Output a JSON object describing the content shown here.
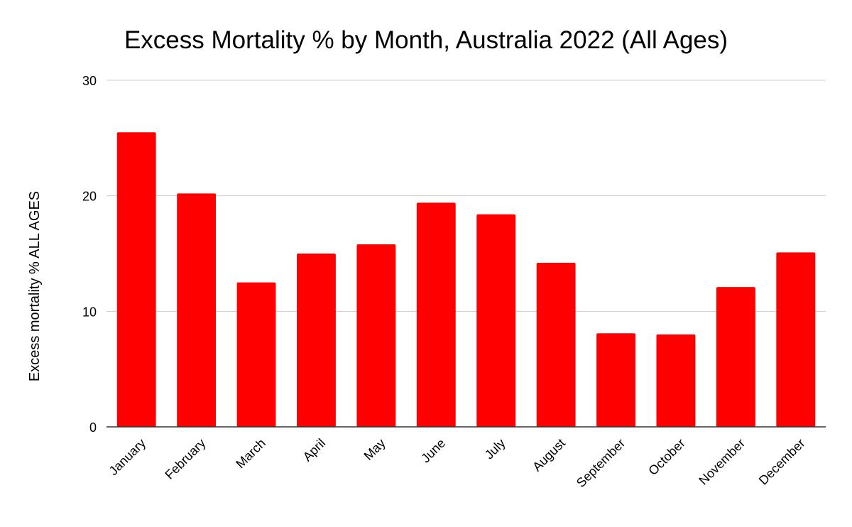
{
  "chart_data": {
    "type": "bar",
    "title": "Excess Mortality % by Month, Australia 2022 (All Ages)",
    "xlabel": "",
    "ylabel": "Excess mortality % ALL AGES",
    "categories": [
      "January",
      "February",
      "March",
      "April",
      "May",
      "June",
      "July",
      "August",
      "September",
      "October",
      "November",
      "December"
    ],
    "values": [
      25.5,
      20.2,
      12.5,
      15.0,
      15.8,
      19.4,
      18.4,
      14.2,
      8.1,
      8.0,
      12.1,
      15.1
    ],
    "ylim": [
      0,
      30
    ],
    "yticks": [
      0,
      10,
      20,
      30
    ],
    "grid": true,
    "legend": "none",
    "bar_color": "#ff0000"
  }
}
